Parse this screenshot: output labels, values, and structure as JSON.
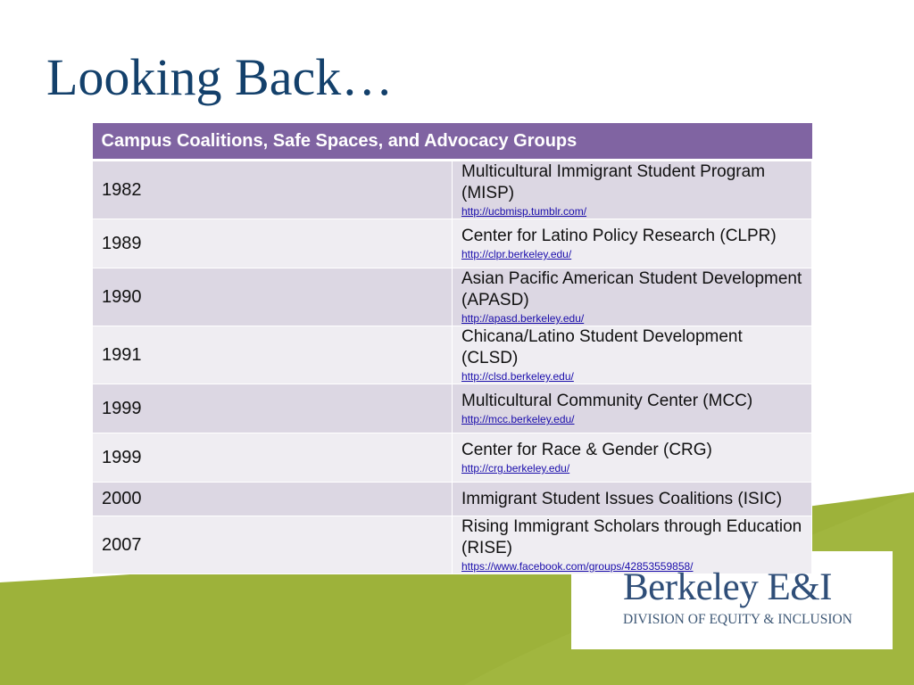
{
  "slide": {
    "title": "Looking Back…",
    "colors": {
      "title": "#13406b",
      "header_bg": "#8064a2",
      "row_odd": "#dcd7e3",
      "row_even": "#efedf2",
      "green_band": "#9db23a",
      "logo": "#2f4e78"
    }
  },
  "table": {
    "header": "Campus Coalitions, Safe Spaces, and Advocacy Groups",
    "rows": [
      {
        "year": "1982",
        "name": "Multicultural Immigrant Student Program (MISP)",
        "link": "http://ucbmisp.tumblr.com/"
      },
      {
        "year": "1989",
        "name": "Center for Latino Policy Research (CLPR)",
        "link": "http://clpr.berkeley.edu/"
      },
      {
        "year": "1990",
        "name": "Asian Pacific American Student Development (APASD)",
        "link": "http://apasd.berkeley.edu/"
      },
      {
        "year": "1991",
        "name": "Chicana/Latino Student Development (CLSD)",
        "link": "http://clsd.berkeley.edu/"
      },
      {
        "year": "1999",
        "name": "Multicultural Community Center (MCC)",
        "link": "http://mcc.berkeley.edu/"
      },
      {
        "year": "1999",
        "name": "Center for Race & Gender (CRG)",
        "link": "http://crg.berkeley.edu/"
      },
      {
        "year": "2000",
        "name": "Immigrant Student Issues Coalitions (ISIC)",
        "link": ""
      },
      {
        "year": "2007",
        "name": "Rising Immigrant Scholars through Education (RISE)",
        "link": "https://www.facebook.com/groups/42853559858/"
      }
    ]
  },
  "logo": {
    "main": "Berkeley E&I",
    "sub": "DIVISION OF EQUITY & INCLUSION"
  }
}
